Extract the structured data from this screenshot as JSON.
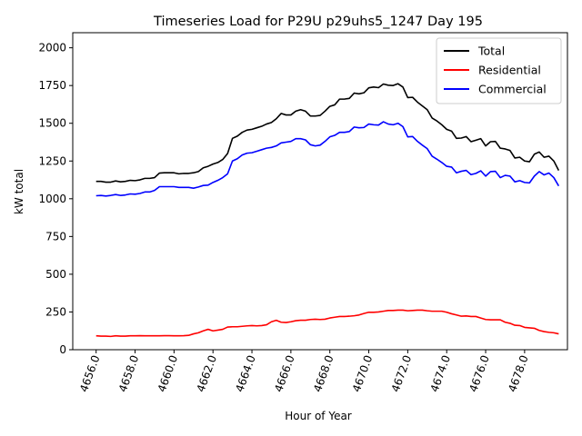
{
  "chart_data": {
    "type": "line",
    "title": "Timeseries Load for P29U p29uhs5_1247  Day 195",
    "xlabel": "Hour of Year",
    "ylabel": "kW total",
    "xlim": [
      4654.8,
      4680.2
    ],
    "ylim": [
      0,
      2100
    ],
    "xticks": [
      4656,
      4658,
      4660,
      4662,
      4664,
      4666,
      4668,
      4670,
      4672,
      4674,
      4676,
      4678
    ],
    "xtick_labels": [
      "4656.0",
      "4658.0",
      "4660.0",
      "4662.0",
      "4664.0",
      "4666.0",
      "4668.0",
      "4670.0",
      "4672.0",
      "4674.0",
      "4676.0",
      "4678.0"
    ],
    "yticks": [
      0,
      250,
      500,
      750,
      1000,
      1250,
      1500,
      1750,
      2000
    ],
    "ytick_labels": [
      "0",
      "250",
      "500",
      "750",
      "1000",
      "1250",
      "1500",
      "1750",
      "2000"
    ],
    "grid": false,
    "legend_position": "top-right",
    "x_start": 4656.0,
    "x_step": 0.25,
    "series": [
      {
        "name": "Total",
        "color": "#000000",
        "values": [
          1115,
          1115,
          1110,
          1110,
          1118,
          1112,
          1115,
          1122,
          1120,
          1125,
          1135,
          1135,
          1140,
          1170,
          1172,
          1172,
          1172,
          1165,
          1168,
          1168,
          1172,
          1180,
          1205,
          1215,
          1230,
          1240,
          1260,
          1300,
          1400,
          1415,
          1440,
          1455,
          1460,
          1470,
          1480,
          1495,
          1505,
          1530,
          1565,
          1555,
          1555,
          1580,
          1590,
          1580,
          1548,
          1548,
          1552,
          1580,
          1612,
          1622,
          1660,
          1660,
          1665,
          1700,
          1695,
          1702,
          1735,
          1740,
          1736,
          1760,
          1752,
          1750,
          1762,
          1740,
          1670,
          1672,
          1640,
          1615,
          1590,
          1535,
          1515,
          1490,
          1460,
          1448,
          1400,
          1402,
          1412,
          1378,
          1388,
          1398,
          1350,
          1378,
          1380,
          1335,
          1330,
          1320,
          1270,
          1275,
          1250,
          1245,
          1295,
          1310,
          1275,
          1282,
          1250,
          1188
        ]
      },
      {
        "name": "Residential",
        "color": "#ff0000",
        "values": [
          92,
          90,
          90,
          88,
          92,
          90,
          90,
          92,
          92,
          93,
          92,
          92,
          92,
          92,
          93,
          93,
          92,
          92,
          93,
          95,
          105,
          112,
          125,
          135,
          125,
          130,
          135,
          150,
          152,
          152,
          155,
          158,
          160,
          158,
          160,
          165,
          185,
          195,
          182,
          180,
          185,
          192,
          195,
          195,
          200,
          202,
          200,
          202,
          210,
          215,
          220,
          220,
          222,
          225,
          230,
          240,
          248,
          248,
          250,
          255,
          260,
          260,
          262,
          262,
          258,
          260,
          262,
          262,
          258,
          255,
          255,
          255,
          248,
          238,
          230,
          222,
          224,
          220,
          220,
          210,
          200,
          198,
          198,
          198,
          182,
          175,
          162,
          160,
          148,
          145,
          142,
          128,
          120,
          115,
          112,
          105
        ]
      },
      {
        "name": "Commercial",
        "color": "#0000ff",
        "values": [
          1020,
          1022,
          1018,
          1022,
          1028,
          1022,
          1025,
          1032,
          1030,
          1035,
          1045,
          1045,
          1055,
          1080,
          1080,
          1080,
          1080,
          1075,
          1075,
          1075,
          1070,
          1078,
          1088,
          1090,
          1108,
          1122,
          1140,
          1165,
          1250,
          1265,
          1290,
          1302,
          1305,
          1315,
          1325,
          1335,
          1340,
          1350,
          1370,
          1375,
          1380,
          1398,
          1398,
          1390,
          1358,
          1350,
          1355,
          1380,
          1410,
          1420,
          1440,
          1440,
          1445,
          1475,
          1470,
          1472,
          1495,
          1490,
          1488,
          1510,
          1495,
          1490,
          1500,
          1478,
          1410,
          1412,
          1380,
          1355,
          1332,
          1282,
          1262,
          1240,
          1215,
          1210,
          1172,
          1182,
          1188,
          1160,
          1168,
          1185,
          1150,
          1180,
          1182,
          1140,
          1155,
          1150,
          1112,
          1120,
          1108,
          1105,
          1150,
          1180,
          1158,
          1170,
          1140,
          1085
        ]
      }
    ]
  }
}
